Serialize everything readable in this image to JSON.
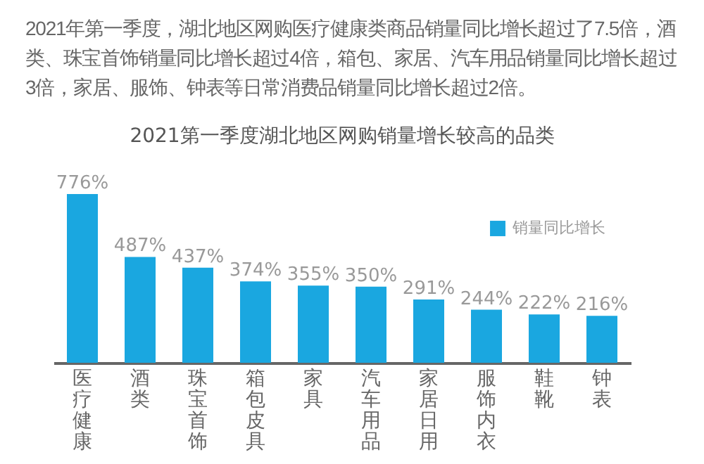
{
  "chart_data": {
    "type": "bar",
    "title": "2021第一季度湖北地区网购销量增长较高的品类",
    "annotations": [
      "2021年第一季度，湖北地区网购医疗健康类商品销量同比增长超过了7.5倍，酒类、珠宝首饰销量同比增长超过4倍，箱包、家居、汽车用品销量同比增长超过3倍，家居、服饰、钟表等日常消费品销量同比增长超过2倍。"
    ],
    "categories": [
      "医疗健康",
      "酒类",
      "珠宝首饰",
      "箱包皮具",
      "家具",
      "汽车用品",
      "家居日用",
      "服饰内衣",
      "鞋靴",
      "钟表"
    ],
    "series": [
      {
        "name": "销量同比增长",
        "color": "#1aa7e0",
        "values": [
          776,
          487,
          437,
          374,
          355,
          350,
          291,
          244,
          222,
          216
        ],
        "value_labels": [
          "776%",
          "487%",
          "437%",
          "374%",
          "355%",
          "350%",
          "291%",
          "244%",
          "222%",
          "216%"
        ]
      }
    ],
    "legend": "top right",
    "grid": false
  }
}
